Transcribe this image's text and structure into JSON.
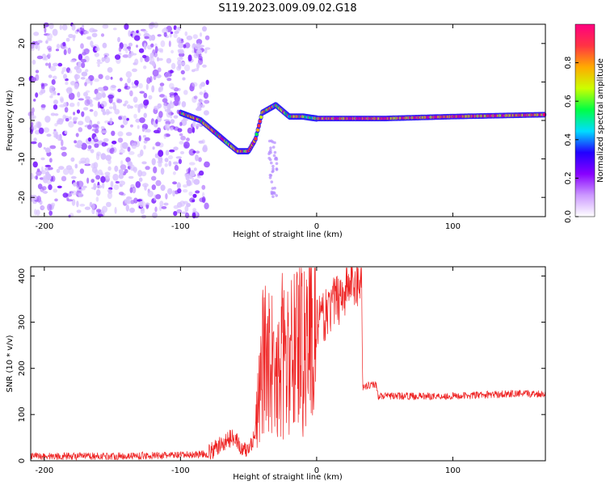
{
  "title": "S119.2023.009.09.02.G18",
  "chart_data": [
    {
      "type": "heatmap",
      "xlabel": "Height of straight line (km)",
      "ylabel": "Frequency (Hz)",
      "xlim": [
        -210,
        168
      ],
      "ylim": [
        -25,
        25
      ],
      "xticks": [
        -200,
        -100,
        0,
        100
      ],
      "yticks": [
        -20,
        -10,
        0,
        10,
        20
      ],
      "grid": false,
      "colorbar": {
        "label": "Normalized spectral amplitude",
        "range": [
          0,
          1
        ],
        "ticks": [
          0.0,
          0.2,
          0.4,
          0.6,
          0.8
        ],
        "colors": [
          "#ffffff",
          "#cc99ff",
          "#8800ff",
          "#2200ff",
          "#00ddff",
          "#00ff44",
          "#ccff00",
          "#ffaa00",
          "#ff3344",
          "#ff0080"
        ]
      },
      "ridge": [
        {
          "x": -100,
          "y": 2
        },
        {
          "x": -85,
          "y": 0
        },
        {
          "x": -75,
          "y": -3
        },
        {
          "x": -65,
          "y": -6
        },
        {
          "x": -58,
          "y": -8
        },
        {
          "x": -50,
          "y": -8
        },
        {
          "x": -45,
          "y": -5
        },
        {
          "x": -40,
          "y": 2
        },
        {
          "x": -30,
          "y": 4
        },
        {
          "x": -20,
          "y": 1
        },
        {
          "x": -10,
          "y": 1
        },
        {
          "x": 0,
          "y": 0.5
        },
        {
          "x": 50,
          "y": 0.5
        },
        {
          "x": 100,
          "y": 1
        },
        {
          "x": 168,
          "y": 1.5
        }
      ]
    },
    {
      "type": "line",
      "xlabel": "Height of straight line (km)",
      "ylabel": "SNR (10 * v/v)",
      "xlim": [
        -210,
        168
      ],
      "ylim": [
        0,
        420
      ],
      "xticks": [
        -200,
        -100,
        0,
        100
      ],
      "yticks": [
        0,
        100,
        200,
        300,
        400
      ],
      "grid": false,
      "color": "#ee2222",
      "series": [
        {
          "x": [
            -210,
            -150,
            -100,
            -80,
            -70,
            -60,
            -55,
            -50,
            -45,
            -40,
            -35,
            -30,
            -25,
            -20,
            -15,
            -10,
            -5,
            0,
            5,
            10,
            15,
            20,
            25,
            30,
            33,
            34,
            40,
            44,
            45,
            60,
            80,
            100,
            120,
            140,
            168
          ],
          "y": [
            10,
            10,
            12,
            15,
            35,
            55,
            20,
            25,
            60,
            200,
            260,
            150,
            230,
            200,
            280,
            240,
            290,
            300,
            310,
            330,
            350,
            370,
            385,
            395,
            400,
            160,
            165,
            165,
            140,
            140,
            140,
            140,
            142,
            145,
            145
          ]
        }
      ]
    }
  ]
}
